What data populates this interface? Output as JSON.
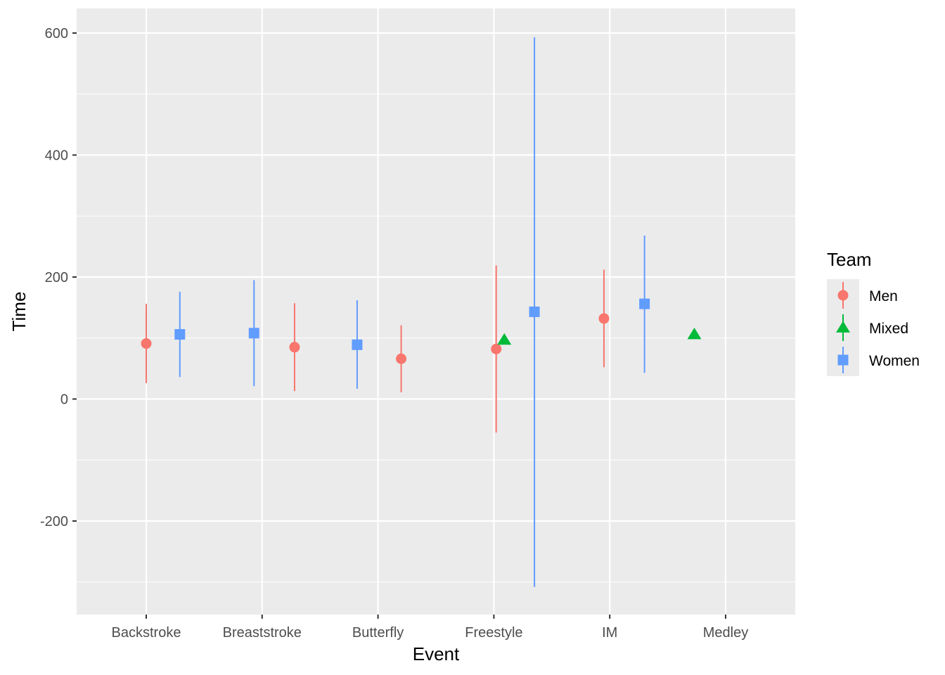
{
  "chart_data": {
    "type": "scatter",
    "subtype": "pointrange",
    "xlabel": "Event",
    "ylabel": "Time",
    "categories": [
      "Backstroke",
      "Breaststroke",
      "Butterfly",
      "Freestyle",
      "IM",
      "Medley"
    ],
    "ylim": [
      -350,
      640
    ],
    "yticks": [
      -200,
      0,
      200,
      400,
      600
    ],
    "grid": true,
    "legend": {
      "title": "Team",
      "position": "right",
      "entries": [
        {
          "name": "Men",
          "color": "#F8766D",
          "shape": "circle"
        },
        {
          "name": "Mixed",
          "color": "#00BA38",
          "shape": "triangle"
        },
        {
          "name": "Women",
          "color": "#619CFF",
          "shape": "square"
        }
      ]
    },
    "series": [
      {
        "name": "Men",
        "color": "#F8766D",
        "shape": "circle",
        "points": [
          {
            "category": "Backstroke",
            "offset": 0.0,
            "y": 91,
            "ymin": 26,
            "ymax": 156
          },
          {
            "category": "Breaststroke",
            "offset": 0.28,
            "y": 85,
            "ymin": 13,
            "ymax": 157
          },
          {
            "category": "Butterfly",
            "offset": 0.2,
            "y": 66,
            "ymin": 11,
            "ymax": 121
          },
          {
            "category": "Freestyle",
            "offset": 0.02,
            "y": 82,
            "ymin": -55,
            "ymax": 219
          },
          {
            "category": "IM",
            "offset": -0.05,
            "y": 132,
            "ymin": 52,
            "ymax": 212
          }
        ]
      },
      {
        "name": "Mixed",
        "color": "#00BA38",
        "shape": "triangle",
        "points": [
          {
            "category": "Freestyle",
            "offset": 0.09,
            "y": 97
          },
          {
            "category": "Medley",
            "offset": -0.27,
            "y": 106
          }
        ]
      },
      {
        "name": "Women",
        "color": "#619CFF",
        "shape": "square",
        "points": [
          {
            "category": "Backstroke",
            "offset": 0.29,
            "y": 106,
            "ymin": 36,
            "ymax": 176
          },
          {
            "category": "Breaststroke",
            "offset": -0.07,
            "y": 108,
            "ymin": 21,
            "ymax": 195
          },
          {
            "category": "Butterfly",
            "offset": -0.18,
            "y": 89,
            "ymin": 17,
            "ymax": 162
          },
          {
            "category": "Freestyle",
            "offset": 0.35,
            "y": 143,
            "ymin": -308,
            "ymax": 593
          },
          {
            "category": "IM",
            "offset": 0.3,
            "y": 156,
            "ymin": 43,
            "ymax": 268
          }
        ]
      }
    ]
  }
}
